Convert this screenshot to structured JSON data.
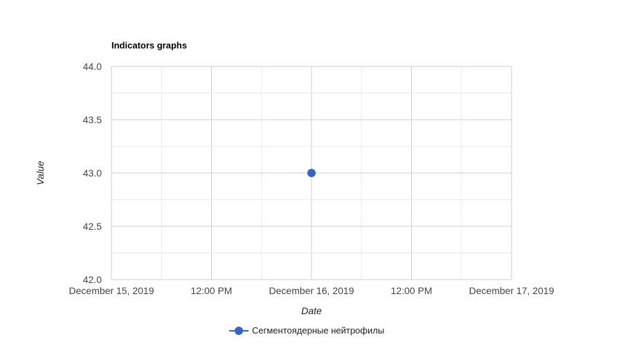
{
  "chart_data": {
    "type": "line",
    "title": "Indicators graphs",
    "xlabel": "Date",
    "ylabel": "Value",
    "xlim": [
      "2019-12-15T00:00",
      "2019-12-17T00:00"
    ],
    "ylim": [
      42.0,
      44.0
    ],
    "x_ticks": [
      {
        "x": "2019-12-15T00:00",
        "label": "December 15, 2019"
      },
      {
        "x": "2019-12-15T12:00",
        "label": "12:00 PM"
      },
      {
        "x": "2019-12-16T00:00",
        "label": "December 16, 2019"
      },
      {
        "x": "2019-12-16T12:00",
        "label": "12:00 PM"
      },
      {
        "x": "2019-12-17T00:00",
        "label": "December 17, 2019"
      }
    ],
    "y_ticks": [
      "42.0",
      "42.5",
      "43.0",
      "43.5",
      "44.0"
    ],
    "grid": true,
    "legend_position": "bottom",
    "series": [
      {
        "name": "Сегментоядерные нейтрофилы",
        "color": "#3366cc",
        "points": [
          {
            "x": "2019-12-16T00:00",
            "y": 43.0
          }
        ]
      }
    ]
  }
}
